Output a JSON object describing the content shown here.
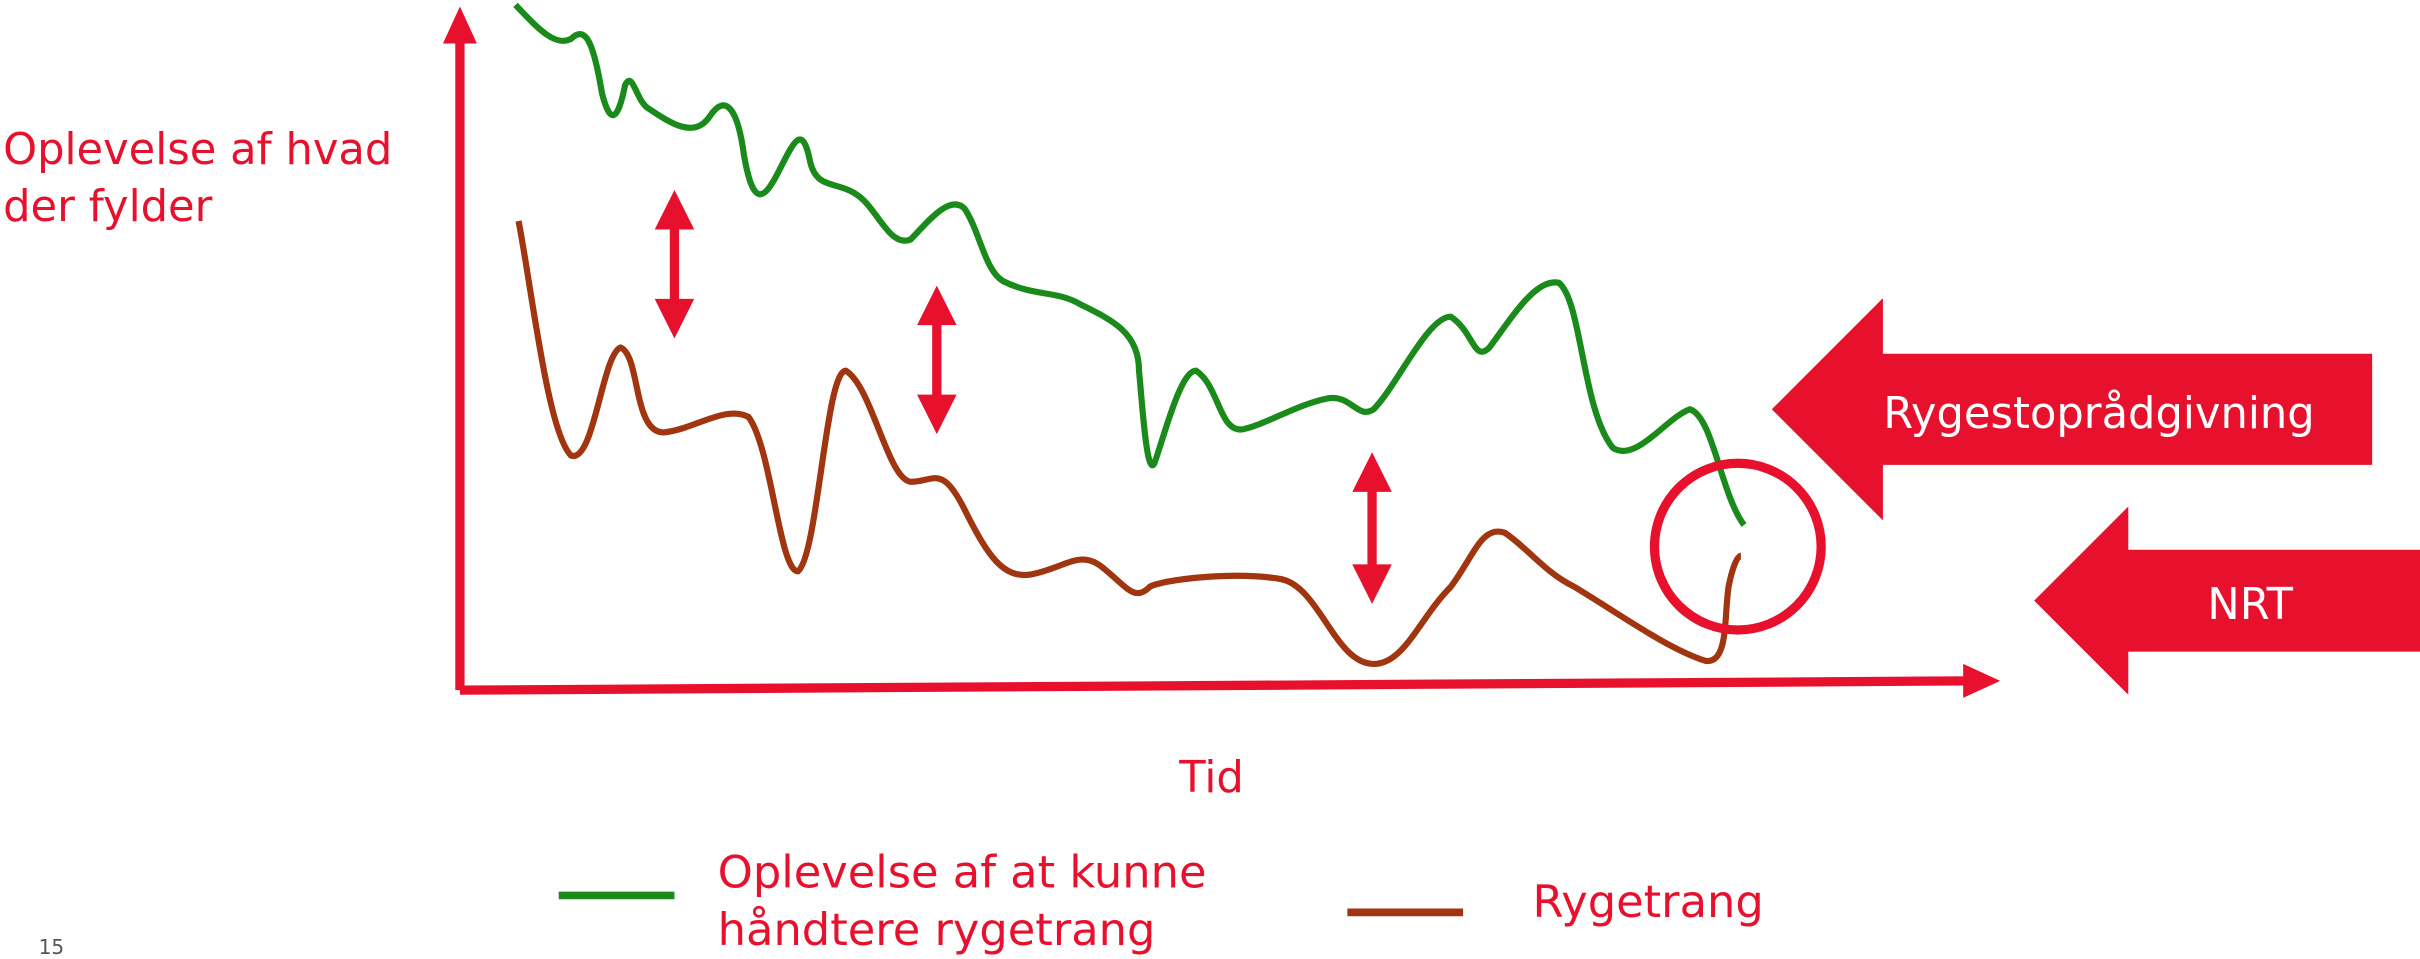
{
  "y_axis_label": [
    "Oplevelse af hvad",
    "der fylder"
  ],
  "x_axis_label": "Tid",
  "arrows": [
    {
      "label": "Rygestoprådgivning"
    },
    {
      "label": "NRT"
    }
  ],
  "legend": [
    {
      "label": [
        "Oplevelse af at kunne",
        "håndtere rygetrang"
      ]
    },
    {
      "label": "Rygetrang"
    }
  ],
  "page_number": "15"
}
